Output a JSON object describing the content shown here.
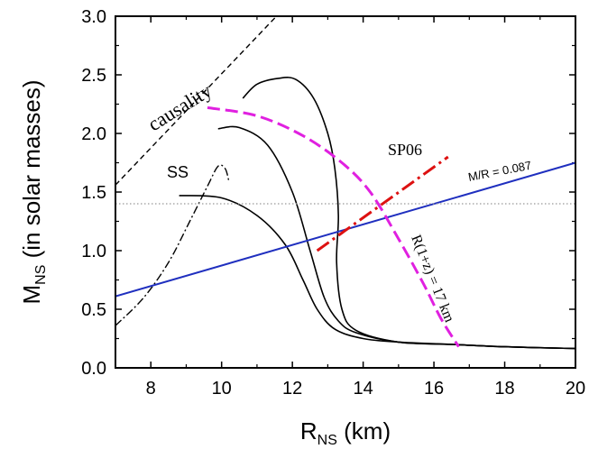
{
  "chart_data": {
    "type": "line",
    "xlabel": "R",
    "xlabel_sub": "NS",
    "xlabel_unit": " (km)",
    "ylabel": "M",
    "ylabel_sub": "NS",
    "ylabel_unit": " (in solar masses)",
    "xlim": [
      7,
      20
    ],
    "ylim": [
      0,
      3
    ],
    "xticks": [
      8,
      10,
      12,
      14,
      16,
      18,
      20
    ],
    "yticks": [
      0.0,
      0.5,
      1.0,
      1.5,
      2.0,
      2.5,
      3.0
    ],
    "ytick_labels": [
      "0.0",
      "0.5",
      "1.0",
      "1.5",
      "2.0",
      "2.5",
      "3.0"
    ],
    "colors": {
      "mr_line": "#1f2fbf",
      "sp06": "#dd1111",
      "redshift": "#e020e0",
      "eos": "#000000",
      "reference": "#999999"
    },
    "series": [
      {
        "style": "eos",
        "points": [
          [
            8.8,
            1.47
          ],
          [
            10.0,
            1.45
          ],
          [
            11.0,
            1.3
          ],
          [
            11.8,
            1.05
          ],
          [
            12.3,
            0.75
          ],
          [
            12.7,
            0.5
          ],
          [
            13.2,
            0.33
          ],
          [
            14.0,
            0.25
          ],
          [
            15.0,
            0.22
          ],
          [
            16.5,
            0.2
          ],
          [
            18.0,
            0.18
          ],
          [
            20.0,
            0.165
          ]
        ]
      },
      {
        "style": "eos",
        "points": [
          [
            9.9,
            2.04
          ],
          [
            10.5,
            2.05
          ],
          [
            11.3,
            1.9
          ],
          [
            12.0,
            1.5
          ],
          [
            12.5,
            1.0
          ],
          [
            12.9,
            0.6
          ],
          [
            13.3,
            0.4
          ],
          [
            13.8,
            0.3
          ],
          [
            15.0,
            0.22
          ],
          [
            16.5,
            0.2
          ],
          [
            18.0,
            0.18
          ],
          [
            20.0,
            0.165
          ]
        ]
      },
      {
        "style": "eos",
        "points": [
          [
            10.6,
            2.3
          ],
          [
            11.0,
            2.42
          ],
          [
            11.6,
            2.47
          ],
          [
            12.1,
            2.46
          ],
          [
            12.6,
            2.3
          ],
          [
            13.0,
            2.0
          ],
          [
            13.2,
            1.7
          ],
          [
            13.3,
            1.3
          ],
          [
            13.25,
            0.9
          ],
          [
            13.4,
            0.5
          ],
          [
            13.8,
            0.32
          ],
          [
            15.0,
            0.22
          ],
          [
            16.5,
            0.2
          ],
          [
            18.0,
            0.18
          ],
          [
            20.0,
            0.165
          ]
        ]
      },
      {
        "style": "ss",
        "points": [
          [
            7.0,
            0.36
          ],
          [
            7.8,
            0.6
          ],
          [
            8.5,
            0.9
          ],
          [
            9.1,
            1.25
          ],
          [
            9.6,
            1.55
          ],
          [
            9.9,
            1.72
          ],
          [
            10.1,
            1.7
          ],
          [
            10.2,
            1.6
          ]
        ]
      },
      {
        "style": "causality",
        "points": [
          [
            7.0,
            1.56
          ],
          [
            11.55,
            3.0
          ]
        ]
      },
      {
        "style": "mr",
        "points": [
          [
            7.0,
            0.61
          ],
          [
            20.0,
            1.75
          ]
        ]
      },
      {
        "style": "reference",
        "points": [
          [
            7.0,
            1.4
          ],
          [
            20.0,
            1.4
          ]
        ]
      },
      {
        "style": "sp06",
        "points": [
          [
            12.7,
            1.0
          ],
          [
            16.4,
            1.8
          ]
        ]
      },
      {
        "style": "redshift",
        "points": [
          [
            9.6,
            2.22
          ],
          [
            11.0,
            2.15
          ],
          [
            12.3,
            1.98
          ],
          [
            13.4,
            1.75
          ],
          [
            14.2,
            1.5
          ],
          [
            15.0,
            1.1
          ],
          [
            15.7,
            0.72
          ],
          [
            16.2,
            0.42
          ],
          [
            16.7,
            0.18
          ]
        ]
      }
    ],
    "annotations": {
      "causality": "causality",
      "ss": "SS",
      "sp06": "SP06",
      "mr": "M/R = 0.087",
      "redshift": "R(1+z) = 17 km"
    }
  }
}
